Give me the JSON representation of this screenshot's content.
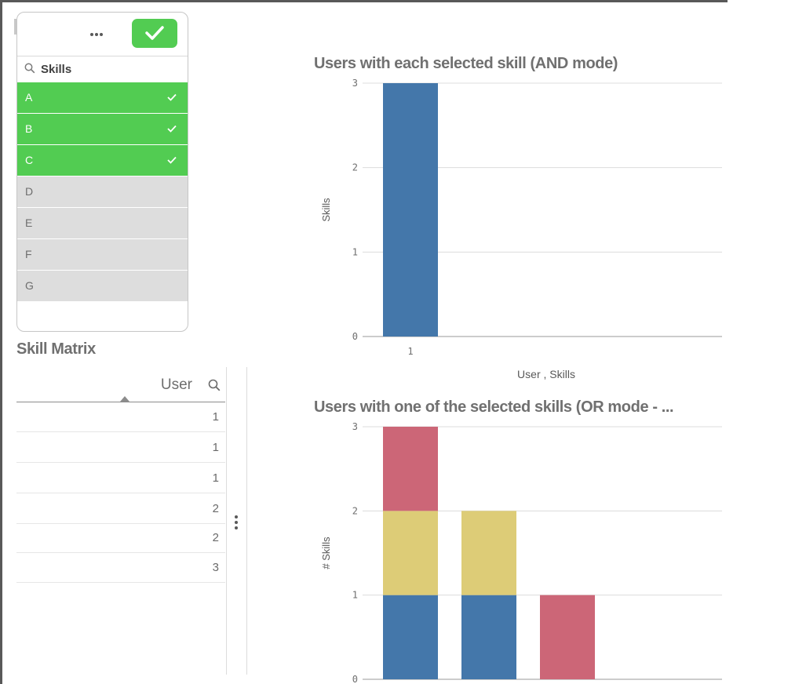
{
  "filter": {
    "field_label": "Skills",
    "items": [
      {
        "label": "A",
        "state": "selected"
      },
      {
        "label": "B",
        "state": "selected"
      },
      {
        "label": "C",
        "state": "selected"
      },
      {
        "label": "D",
        "state": "alternative"
      },
      {
        "label": "E",
        "state": "alternative"
      },
      {
        "label": "F",
        "state": "alternative"
      },
      {
        "label": "G",
        "state": "alternative"
      }
    ],
    "icons": {
      "more": "more-horizontal-icon",
      "confirm": "checkmark-icon",
      "search": "search-icon"
    }
  },
  "table": {
    "title": "Skill Matrix",
    "column_header": "User",
    "rows": [
      "1",
      "1",
      "1",
      "2",
      "2",
      "3"
    ]
  },
  "colors": {
    "selected": "#52cc52",
    "alternative": "#dddddd",
    "series_blue": "#4477aa",
    "series_yellow": "#ddcc77",
    "series_red": "#cc6677"
  },
  "chart_data": [
    {
      "type": "bar",
      "title": "Users with each selected skill (AND mode)",
      "xlabel": "User , Skills",
      "ylabel": "Skills",
      "categories": [
        "1"
      ],
      "series": [
        {
          "values": [
            3
          ],
          "color": "#4477aa"
        }
      ],
      "yticks": [
        "0",
        "1",
        "2",
        "3"
      ],
      "ylim": [
        0,
        3
      ],
      "grid": true
    },
    {
      "type": "bar",
      "stacked": true,
      "title": "Users with one of the selected skills (OR mode - ...",
      "xlabel": "",
      "ylabel": "# Skills",
      "categories": [
        "",
        "",
        ""
      ],
      "series": [
        {
          "values": [
            1,
            1,
            0
          ],
          "color": "#4477aa"
        },
        {
          "values": [
            1,
            1,
            0
          ],
          "color": "#ddcc77"
        },
        {
          "values": [
            1,
            0,
            1
          ],
          "color": "#cc6677"
        }
      ],
      "yticks": [
        "0",
        "1",
        "2",
        "3"
      ],
      "ylim": [
        0,
        3
      ],
      "grid": true
    }
  ]
}
